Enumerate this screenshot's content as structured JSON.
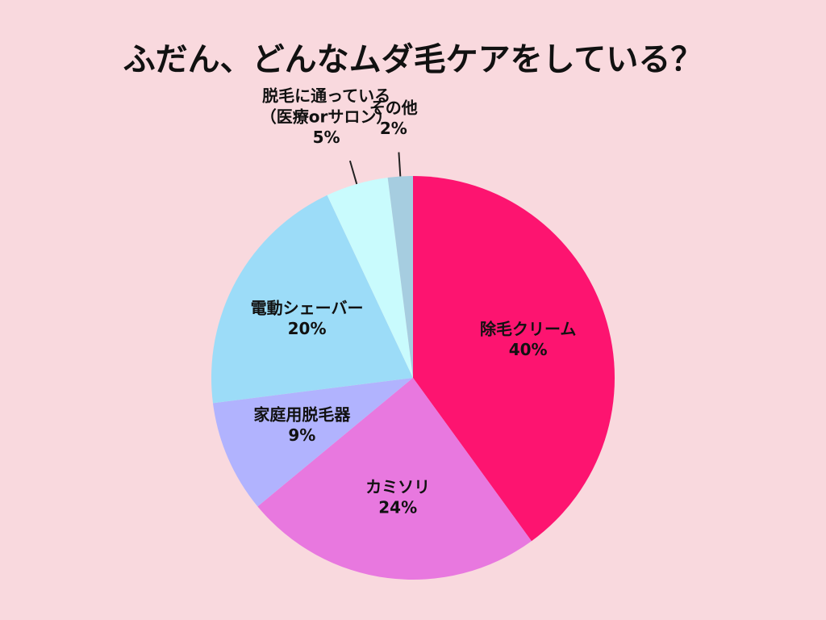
{
  "chart_data": {
    "type": "pie",
    "title": "ふだん、どんなムダ毛ケアをしている？",
    "categories": [
      "除毛クリーム",
      "カミソリ",
      "家庭用脱毛器",
      "電動シェーバー",
      "脱毛に通っている\n（医療orサロン）",
      "その他"
    ],
    "values": [
      40,
      24,
      9,
      20,
      5,
      2
    ],
    "value_labels": [
      "40%",
      "24%",
      "9%",
      "20%",
      "5%",
      "2%"
    ],
    "colors": [
      "#fd1470",
      "#e878df",
      "#b1b3fe",
      "#9cdcf8",
      "#c9fbfd",
      "#a6cde0"
    ]
  }
}
